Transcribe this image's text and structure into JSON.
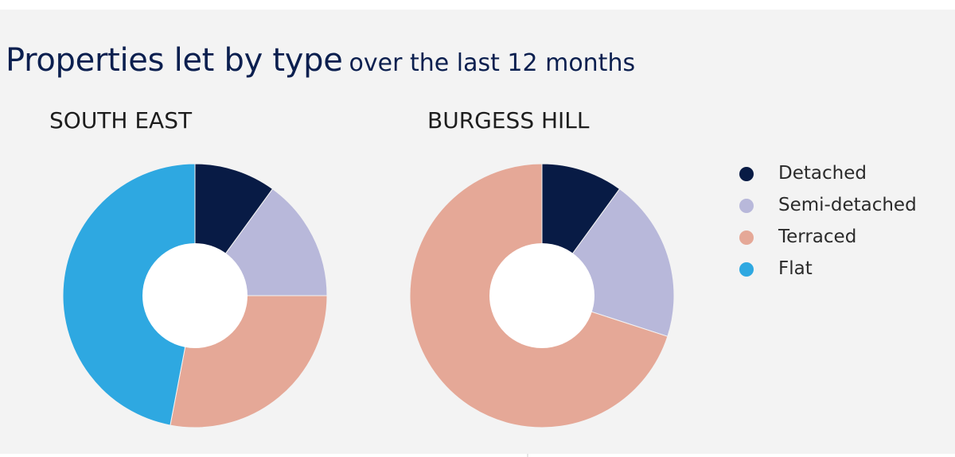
{
  "header": {
    "title_main": "Properties let by type",
    "title_sub": "over the last 12 months"
  },
  "legend": {
    "items": [
      {
        "label": "Detached",
        "color": "#081b45"
      },
      {
        "label": "Semi-detached",
        "color": "#b8b8da"
      },
      {
        "label": "Terraced",
        "color": "#e5a897"
      },
      {
        "label": "Flat",
        "color": "#2ea8e1"
      }
    ]
  },
  "chart_data": [
    {
      "type": "pie",
      "title": "SOUTH EAST",
      "categories": [
        "Detached",
        "Semi-detached",
        "Terraced",
        "Flat"
      ],
      "values": [
        10,
        15,
        28,
        47
      ],
      "colors": [
        "#081b45",
        "#b8b8da",
        "#e5a897",
        "#2ea8e1"
      ],
      "donut": true,
      "legend": "right"
    },
    {
      "type": "pie",
      "title": "BURGESS HILL",
      "categories": [
        "Detached",
        "Semi-detached",
        "Terraced",
        "Flat"
      ],
      "values": [
        10,
        20,
        70,
        0
      ],
      "colors": [
        "#081b45",
        "#b8b8da",
        "#e5a897",
        "#2ea8e1"
      ],
      "donut": true,
      "legend": "right"
    }
  ]
}
